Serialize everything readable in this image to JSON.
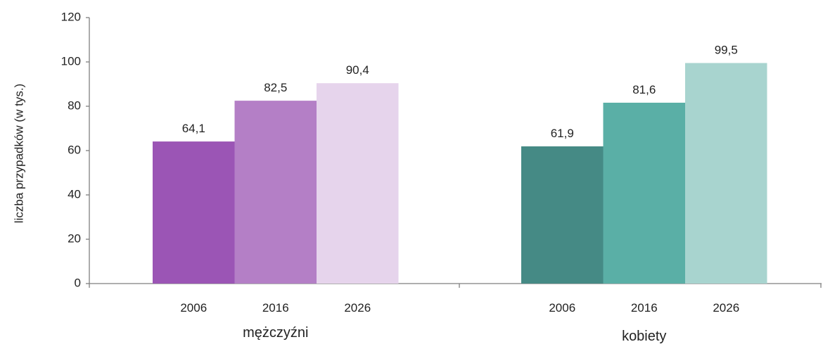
{
  "chart_data": {
    "type": "bar",
    "title": "",
    "xlabel": "",
    "ylabel": "liczba przypadków (w tys.)",
    "ylim": [
      0,
      120
    ],
    "yticks": [
      0,
      20,
      40,
      60,
      80,
      100,
      120
    ],
    "grid": false,
    "legend": "none",
    "groups": [
      {
        "label": "mężczyźni",
        "bars": [
          {
            "category": "2006",
            "value": 64.1,
            "label": "64,1",
            "color": "#9b55b5"
          },
          {
            "category": "2016",
            "value": 82.5,
            "label": "82,5",
            "color": "#b47fc6"
          },
          {
            "category": "2026",
            "value": 90.4,
            "label": "90,4",
            "color": "#e6d4ec"
          }
        ]
      },
      {
        "label": "kobiety",
        "bars": [
          {
            "category": "2006",
            "value": 61.9,
            "label": "61,9",
            "color": "#458a85"
          },
          {
            "category": "2016",
            "value": 81.6,
            "label": "81,6",
            "color": "#5aafa6"
          },
          {
            "category": "2026",
            "value": 99.5,
            "label": "99,5",
            "color": "#a8d4cf"
          }
        ]
      }
    ]
  }
}
